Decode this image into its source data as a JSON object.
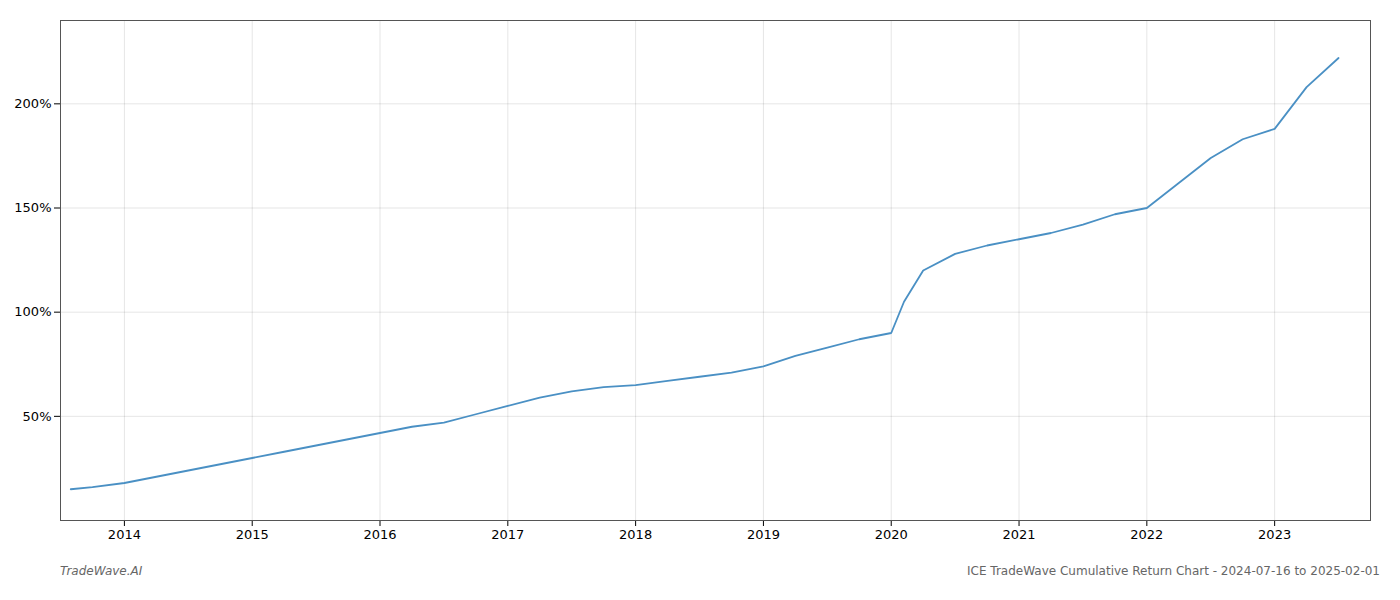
{
  "chart_data": {
    "type": "line",
    "annotations": [
      "TradeWave.AI",
      "ICE TradeWave Cumulative Return Chart - 2024-07-16 to 2025-02-01"
    ],
    "x": [
      2013.58,
      2013.75,
      2014.0,
      2014.25,
      2014.5,
      2014.75,
      2015.0,
      2015.25,
      2015.5,
      2015.75,
      2016.0,
      2016.25,
      2016.5,
      2016.75,
      2017.0,
      2017.25,
      2017.5,
      2017.75,
      2018.0,
      2018.25,
      2018.5,
      2018.75,
      2019.0,
      2019.25,
      2019.5,
      2019.75,
      2020.0,
      2020.1,
      2020.25,
      2020.5,
      2020.75,
      2021.0,
      2021.25,
      2021.5,
      2021.75,
      2022.0,
      2022.25,
      2022.5,
      2022.75,
      2023.0,
      2023.25,
      2023.5
    ],
    "values": [
      15,
      16,
      18,
      21,
      24,
      27,
      30,
      33,
      36,
      39,
      42,
      45,
      47,
      51,
      55,
      59,
      62,
      64,
      65,
      67,
      69,
      71,
      74,
      79,
      83,
      87,
      90,
      105,
      120,
      128,
      132,
      135,
      138,
      142,
      147,
      150,
      162,
      174,
      183,
      188,
      208,
      222
    ],
    "color": "#4a90c4",
    "xlim": [
      2013.5,
      2023.75
    ],
    "xticks": [
      2014,
      2015,
      2016,
      2017,
      2018,
      2019,
      2020,
      2021,
      2022,
      2023
    ],
    "ylim": [
      0,
      240
    ],
    "yticks": [
      {
        "value": 50,
        "label": "50%"
      },
      {
        "value": 100,
        "label": "100%"
      },
      {
        "value": 150,
        "label": "150%"
      },
      {
        "value": 200,
        "label": "200%"
      }
    ],
    "grid": true
  }
}
